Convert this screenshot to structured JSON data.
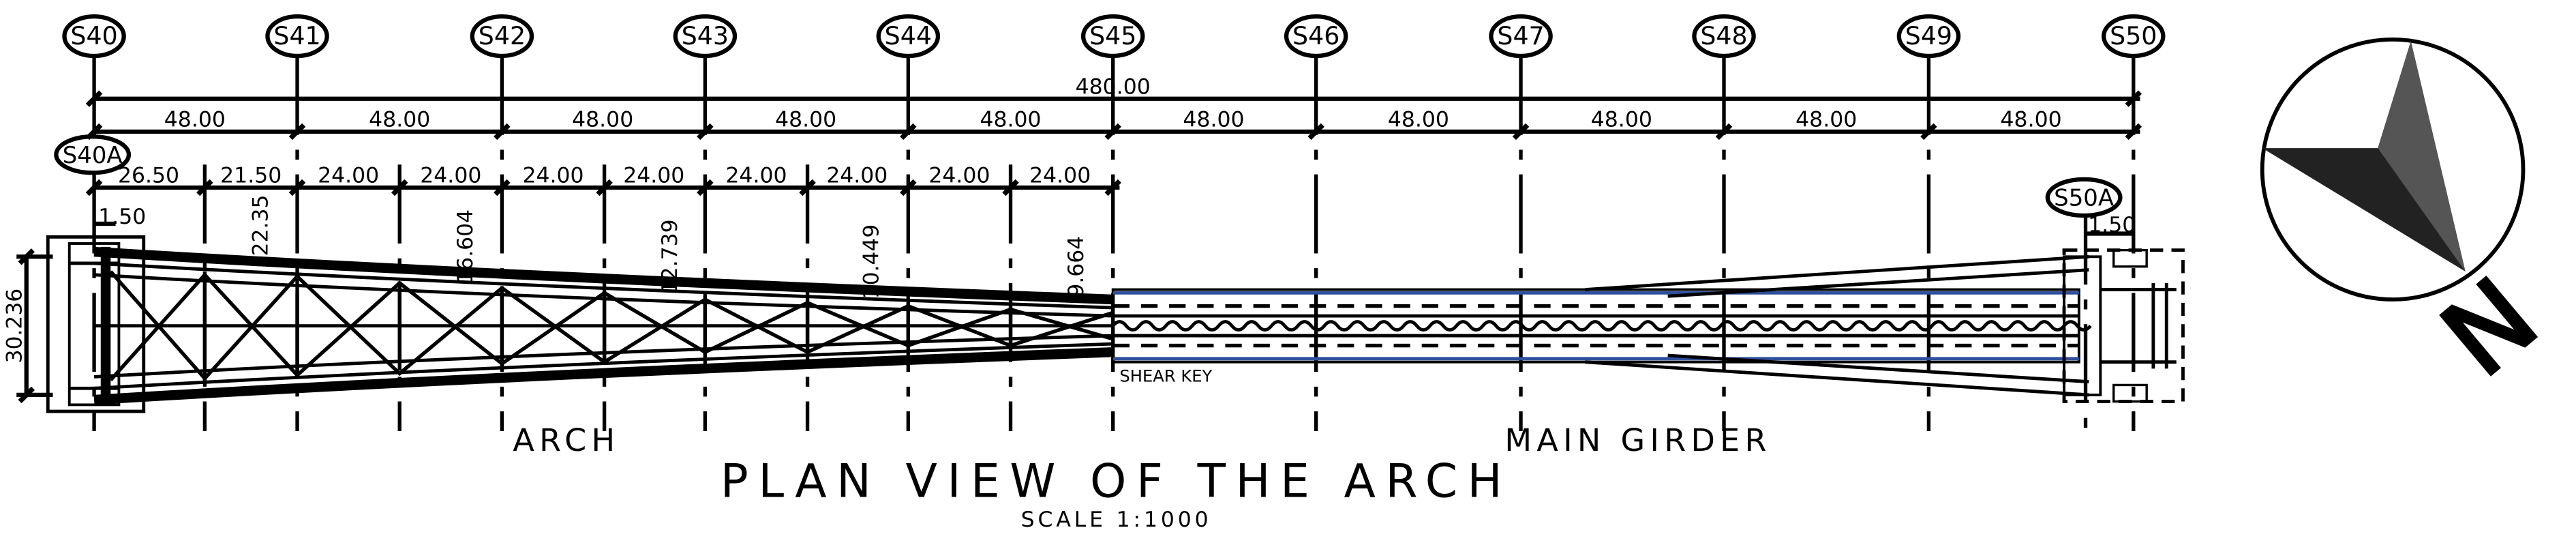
{
  "axes": [
    "S40",
    "S41",
    "S42",
    "S43",
    "S44",
    "S45",
    "S46",
    "S47",
    "S48",
    "S49",
    "S50"
  ],
  "sub_axes": {
    "left": "S40A",
    "right": "S50A"
  },
  "dimensions": {
    "overall": "480.00",
    "spans": [
      "48.00",
      "48.00",
      "48.00",
      "48.00",
      "48.00",
      "48.00",
      "48.00",
      "48.00",
      "48.00",
      "48.00"
    ],
    "arch_spacing": [
      "26.50",
      "21.50",
      "24.00",
      "24.00",
      "24.00",
      "24.00",
      "24.00",
      "24.00",
      "24.00",
      "24.00"
    ],
    "end_offset_left": "1.50",
    "end_offset_right": "1.50",
    "deck_width": "30.236",
    "arch_widths": [
      "22.35",
      "16.604",
      "12.739",
      "10.449",
      "9.664"
    ]
  },
  "labels": {
    "arch": "ARCH",
    "main_girder": "MAIN GIRDER",
    "shear_key": "SHEAR KEY"
  },
  "title": "PLAN VIEW OF THE ARCH",
  "scale": "SCALE 1:1000",
  "north_letter": "N"
}
